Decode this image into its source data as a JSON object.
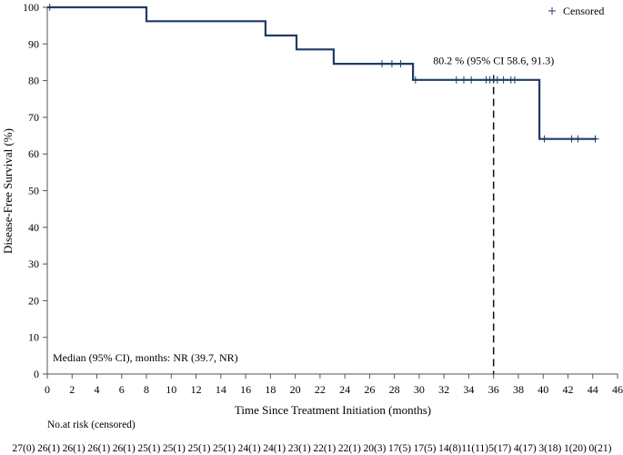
{
  "chart_data": {
    "type": "line",
    "subtype": "kaplan-meier",
    "title": "",
    "xlabel": "Time Since Treatment Initiation (months)",
    "ylabel": "Disease-Free Survival (%)",
    "xlim": [
      0,
      46
    ],
    "ylim": [
      0,
      100
    ],
    "x_ticks": [
      0,
      2,
      4,
      6,
      8,
      10,
      12,
      14,
      16,
      18,
      20,
      22,
      24,
      26,
      28,
      30,
      32,
      34,
      36,
      38,
      40,
      42,
      44,
      46
    ],
    "y_ticks": [
      0,
      10,
      20,
      30,
      40,
      50,
      60,
      70,
      80,
      90,
      100
    ],
    "line_color": "#1f3a68",
    "curve_x": [
      0,
      8.0,
      8.0,
      17.6,
      17.6,
      20.1,
      20.1,
      23.1,
      23.1,
      29.5,
      29.5,
      39.7,
      39.7,
      44.3
    ],
    "curve_y": [
      100,
      100,
      96.2,
      96.2,
      92.3,
      92.3,
      88.5,
      88.5,
      84.6,
      84.6,
      80.2,
      80.2,
      64.1,
      64.1
    ],
    "censored": [
      {
        "x": 0.2,
        "y": 100
      },
      {
        "x": 27.0,
        "y": 84.6
      },
      {
        "x": 27.8,
        "y": 84.6
      },
      {
        "x": 28.5,
        "y": 84.6
      },
      {
        "x": 29.7,
        "y": 80.2
      },
      {
        "x": 33.0,
        "y": 80.2
      },
      {
        "x": 33.6,
        "y": 80.2
      },
      {
        "x": 34.2,
        "y": 80.2
      },
      {
        "x": 35.4,
        "y": 80.2
      },
      {
        "x": 35.7,
        "y": 80.2
      },
      {
        "x": 36.0,
        "y": 80.2
      },
      {
        "x": 36.3,
        "y": 80.2
      },
      {
        "x": 36.8,
        "y": 80.2
      },
      {
        "x": 37.4,
        "y": 80.2
      },
      {
        "x": 37.7,
        "y": 80.2
      },
      {
        "x": 40.1,
        "y": 64.1
      },
      {
        "x": 42.3,
        "y": 64.1
      },
      {
        "x": 42.8,
        "y": 64.1
      },
      {
        "x": 44.2,
        "y": 64.1
      }
    ],
    "reference_line_x": 36,
    "annotation": {
      "text": "80.2 % (95% CI 58.6, 91.3)",
      "x": 36,
      "y": 83.5
    },
    "legend": {
      "label": "Censored",
      "marker": "+",
      "position": "top-right"
    },
    "median_text": "Median (95% CI), months: NR (39.7, NR)",
    "risk_table": {
      "title": "No.at risk (censored)",
      "values": [
        "27(0)",
        "26(1)",
        "26(1)",
        "26(1)",
        "26(1)",
        "25(1)",
        "25(1)",
        "25(1)",
        "25(1)",
        "24(1)",
        "24(1)",
        "23(1)",
        "22(1)",
        "22(1)",
        "20(3)",
        "17(5)",
        "17(5)",
        "14(8)",
        "11(11)",
        "5(17)",
        "4(17)",
        "3(18)",
        "1(20)",
        "0(21)"
      ]
    }
  }
}
